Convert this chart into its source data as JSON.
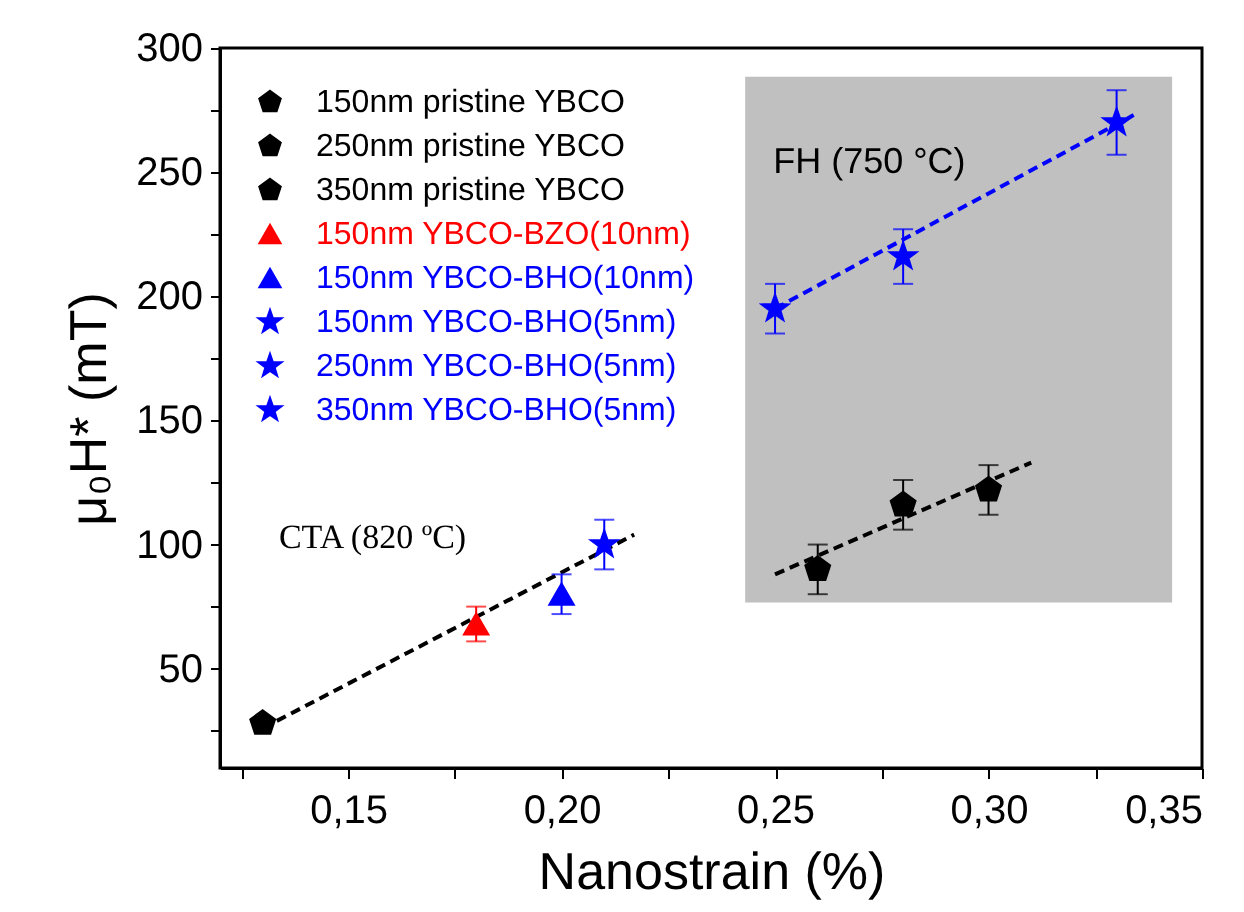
{
  "chart_data": {
    "type": "scatter",
    "xlabel": "Nanostrain (%)",
    "ylabel": "μ₀H* (mT)",
    "xlim": [
      0.12,
      0.35
    ],
    "ylim": [
      10,
      300
    ],
    "xticks": [
      {
        "value": 0.125,
        "label": null
      },
      {
        "value": 0.15,
        "label": "0,15"
      },
      {
        "value": 0.175,
        "label": null
      },
      {
        "value": 0.2,
        "label": "0,20"
      },
      {
        "value": 0.225,
        "label": null
      },
      {
        "value": 0.25,
        "label": "0,25"
      },
      {
        "value": 0.275,
        "label": null
      },
      {
        "value": 0.3,
        "label": "0,30"
      },
      {
        "value": 0.325,
        "label": null
      },
      {
        "value": 0.35,
        "label": "0,35"
      }
    ],
    "yticks": [
      {
        "value": 25,
        "label": null
      },
      50,
      {
        "value": 75,
        "label": null
      },
      100,
      {
        "value": 125,
        "label": null
      },
      150,
      {
        "value": 175,
        "label": null
      },
      200,
      {
        "value": 225,
        "label": null
      },
      250,
      {
        "value": 275,
        "label": null
      },
      300
    ],
    "grid": false,
    "legend": "top left",
    "series": [
      {
        "name": "150nm pristine YBCO",
        "color": "#000000",
        "x": [
          0.13,
          0.26
        ],
        "values": [
          28,
          90
        ],
        "errors": [
          null,
          10
        ]
      },
      {
        "name": "250nm pristine YBCO",
        "color": "#000000",
        "x": [
          0.28
        ],
        "values": [
          116
        ],
        "errors": [
          10
        ]
      },
      {
        "name": "350nm pristine YBCO",
        "color": "#000000",
        "x": [
          0.3
        ],
        "values": [
          122
        ],
        "errors": [
          10
        ]
      },
      {
        "name": "150nm YBCO-BZO(10nm)",
        "color": "#ff0000",
        "marker": "triangle",
        "x": [
          0.18
        ],
        "values": [
          68
        ],
        "errors": [
          7
        ]
      },
      {
        "name": "150nm YBCO-BHO(10nm)",
        "color": "#0000ff",
        "marker": "triangle",
        "x": [
          0.2
        ],
        "values": [
          80
        ],
        "errors": [
          8
        ]
      },
      {
        "name": "150nm YBCO-BHO(5nm)",
        "color": "#0000ff",
        "marker": "star",
        "x": [
          0.21,
          0.25
        ],
        "values": [
          100,
          195
        ],
        "errors": [
          10,
          10
        ]
      },
      {
        "name": "250nm YBCO-BHO(5nm)",
        "color": "#0000ff",
        "marker": "star",
        "x": [
          0.28
        ],
        "values": [
          216
        ],
        "errors": [
          11
        ]
      },
      {
        "name": "350nm YBCO-BHO(5nm)",
        "color": "#0000ff",
        "marker": "star",
        "x": [
          0.33
        ],
        "values": [
          270
        ],
        "errors": [
          13
        ]
      },
      {
        "color": "#000000",
        "type": "line",
        "line_style": "dashed",
        "x": [
          0.13,
          0.217
        ],
        "values": [
          26,
          104
        ]
      },
      {
        "color": "#000000",
        "type": "line",
        "line_style": "dashed",
        "x": [
          0.25,
          0.31
        ],
        "values": [
          88,
          133
        ]
      },
      {
        "color": "#0000ff",
        "type": "line",
        "line_style": "dashed",
        "x": [
          0.25,
          0.334
        ],
        "values": [
          195,
          273
        ]
      }
    ],
    "bands": [
      {
        "axis": "x",
        "from": 0.243,
        "to": 0.343,
        "label": "FH (750 °C)",
        "color": "#c0c0c0"
      }
    ],
    "annotations": [
      "CTA (820 ºC)"
    ]
  }
}
